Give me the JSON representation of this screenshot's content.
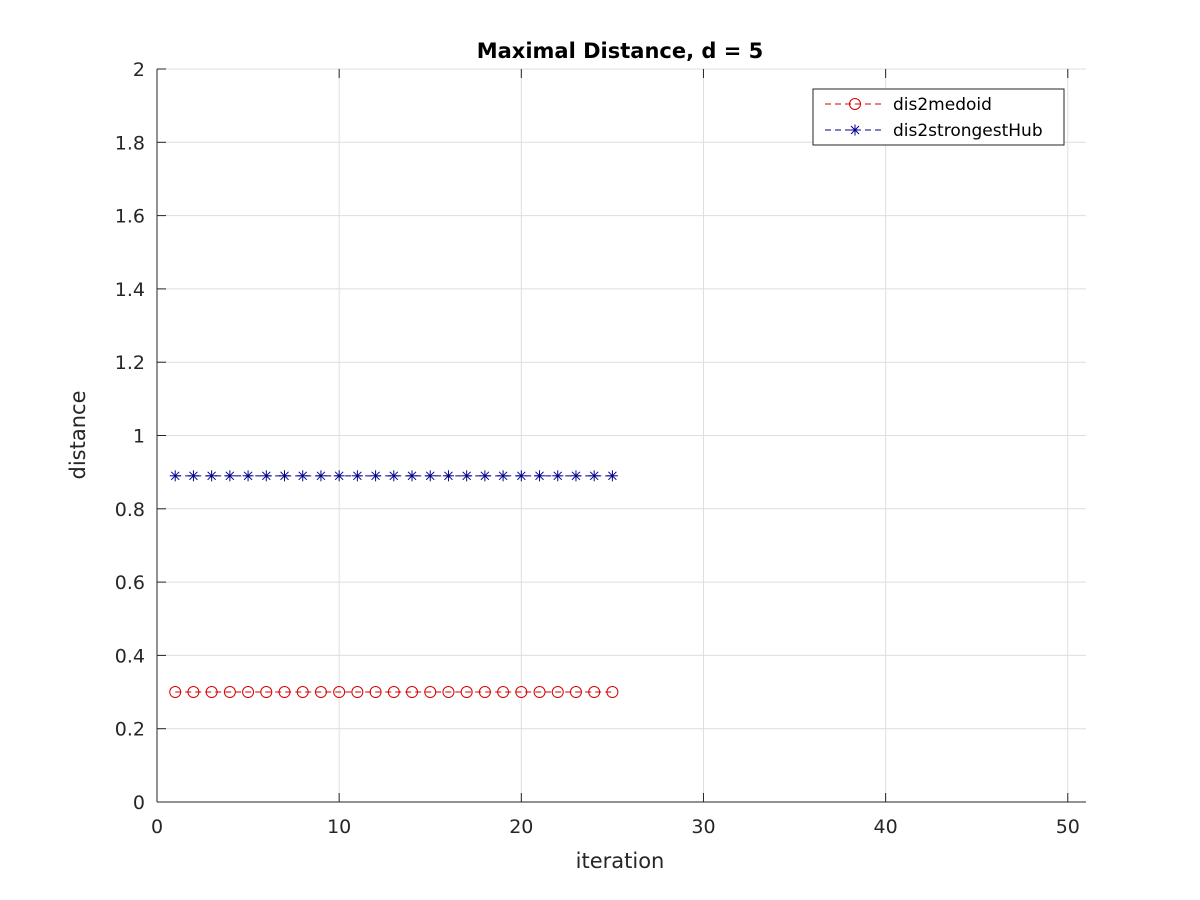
{
  "chart_data": {
    "type": "line",
    "title": "Maximal Distance, d = 5",
    "xlabel": "iteration",
    "ylabel": "distance",
    "xlim": [
      0,
      51
    ],
    "ylim": [
      0,
      2
    ],
    "xticks": [
      0,
      10,
      20,
      30,
      40,
      50
    ],
    "yticks": [
      0,
      0.2,
      0.4,
      0.6,
      0.8,
      1,
      1.2,
      1.4,
      1.6,
      1.8,
      2
    ],
    "xtick_labels": [
      "0",
      "10",
      "20",
      "30",
      "40",
      "50"
    ],
    "ytick_labels": [
      "0",
      "0.2",
      "0.4",
      "0.6",
      "0.8",
      "1",
      "1.2",
      "1.4",
      "1.6",
      "1.8",
      "2"
    ],
    "grid": true,
    "legend_position": "top-right",
    "series": [
      {
        "name": "dis2medoid",
        "color": "#d40000",
        "marker": "circle",
        "line_style": "dashed",
        "x": [
          1,
          2,
          3,
          4,
          5,
          6,
          7,
          8,
          9,
          10,
          11,
          12,
          13,
          14,
          15,
          16,
          17,
          18,
          19,
          20,
          21,
          22,
          23,
          24,
          25
        ],
        "y": [
          0.3,
          0.3,
          0.3,
          0.3,
          0.3,
          0.3,
          0.3,
          0.3,
          0.3,
          0.3,
          0.3,
          0.3,
          0.3,
          0.3,
          0.3,
          0.3,
          0.3,
          0.3,
          0.3,
          0.3,
          0.3,
          0.3,
          0.3,
          0.3,
          0.3
        ]
      },
      {
        "name": "dis2strongestHub",
        "color": "#00008b",
        "marker": "asterisk",
        "line_style": "dashed",
        "x": [
          1,
          2,
          3,
          4,
          5,
          6,
          7,
          8,
          9,
          10,
          11,
          12,
          13,
          14,
          15,
          16,
          17,
          18,
          19,
          20,
          21,
          22,
          23,
          24,
          25
        ],
        "y": [
          0.89,
          0.89,
          0.89,
          0.89,
          0.89,
          0.89,
          0.89,
          0.89,
          0.89,
          0.89,
          0.89,
          0.89,
          0.89,
          0.89,
          0.89,
          0.89,
          0.89,
          0.89,
          0.89,
          0.89,
          0.89,
          0.89,
          0.89,
          0.89,
          0.89
        ]
      }
    ]
  }
}
